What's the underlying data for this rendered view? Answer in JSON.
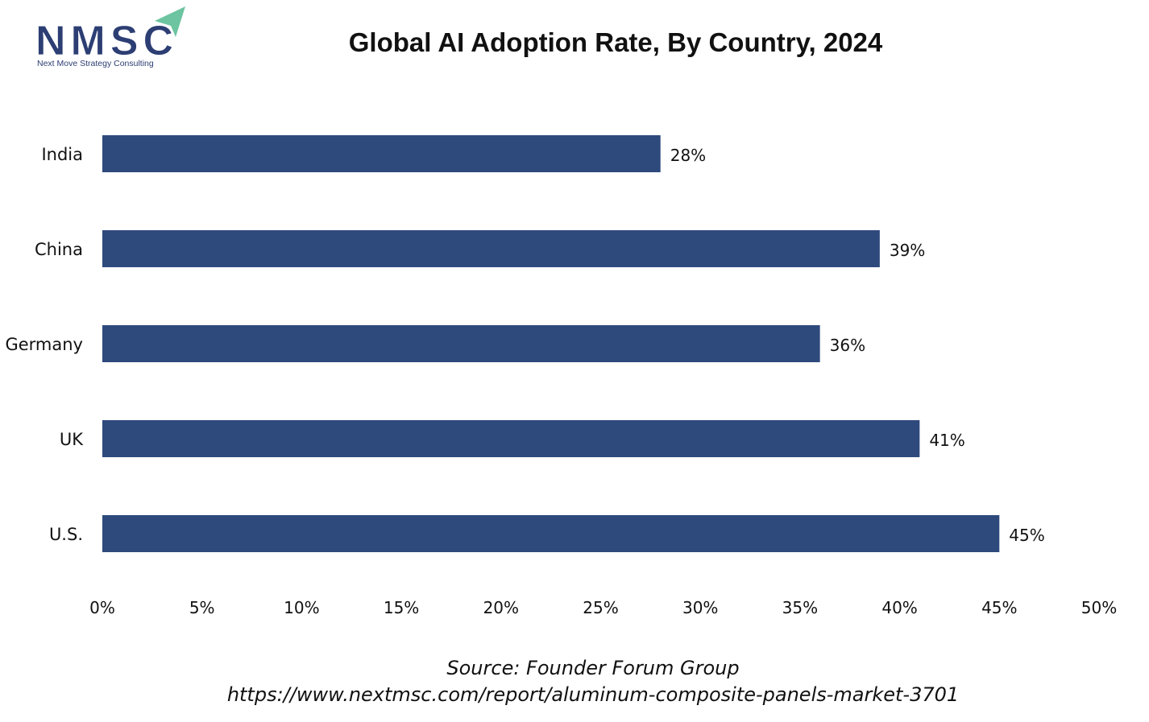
{
  "logo": {
    "text": "NMSC",
    "subtitle": "Next Move Strategy Consulting",
    "brand_color": "#2c3e73",
    "accent_color": "#6cc4a0"
  },
  "chart_data": {
    "type": "bar",
    "orientation": "horizontal",
    "title": "Global AI Adoption Rate, By Country, 2024",
    "categories": [
      "India",
      "China",
      "Germany",
      "UK",
      "U.S."
    ],
    "values": [
      28,
      39,
      36,
      41,
      45
    ],
    "data_labels": [
      "28%",
      "39%",
      "36%",
      "41%",
      "45%"
    ],
    "xlabel": "",
    "ylabel": "",
    "xlim": [
      0,
      50
    ],
    "x_ticks": [
      0,
      5,
      10,
      15,
      20,
      25,
      30,
      35,
      40,
      45,
      50
    ],
    "x_tick_labels": [
      "0%",
      "5%",
      "10%",
      "15%",
      "20%",
      "25%",
      "30%",
      "35%",
      "40%",
      "45%",
      "50%"
    ],
    "grid": false,
    "legend": "none",
    "bar_color": "#2e4a7d"
  },
  "footer": {
    "source": "Source: Founder Forum Group",
    "url": "https://www.nextmsc.com/report/aluminum-composite-panels-market-3701"
  }
}
